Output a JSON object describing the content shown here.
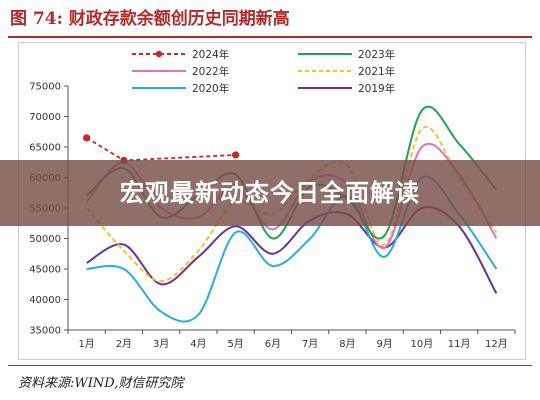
{
  "title": "图 74:  财政存款余额创历史同期新高",
  "source": "资料来源:WIND,财信研究院",
  "overlay_text": "宏观最新动态今日全面解读",
  "chart_data": {
    "type": "line",
    "categories": [
      "1月",
      "2月",
      "3月",
      "4月",
      "5月",
      "6月",
      "7月",
      "8月",
      "9月",
      "10月",
      "11月",
      "12月"
    ],
    "ylim": [
      35000,
      75000
    ],
    "yticks": [
      35000,
      40000,
      45000,
      50000,
      55000,
      60000,
      65000,
      70000,
      75000
    ],
    "grid": false,
    "legend_position": "top",
    "series": [
      {
        "name": "2024年",
        "color": "#c62828",
        "style": "dashed-marker",
        "values": [
          66500,
          62800,
          null,
          null,
          63700,
          null,
          null,
          null,
          null,
          null,
          null,
          null
        ]
      },
      {
        "name": "2023年",
        "color": "#21a456",
        "style": "solid",
        "values": [
          57000,
          61500,
          53500,
          57000,
          60500,
          50000,
          58500,
          56500,
          50500,
          71000,
          65500,
          58000
        ]
      },
      {
        "name": "2022年",
        "color": "#e36fbf",
        "style": "solid",
        "values": [
          56000,
          62500,
          55000,
          53500,
          58500,
          51500,
          59500,
          59000,
          48500,
          65000,
          60500,
          50000
        ]
      },
      {
        "name": "2021年",
        "color": "#f1c232",
        "style": "dashed",
        "values": [
          55000,
          48000,
          43000,
          48000,
          56000,
          54000,
          60000,
          62000,
          49000,
          68000,
          60000,
          51000
        ]
      },
      {
        "name": "2020年",
        "color": "#2aaed8",
        "style": "solid",
        "values": [
          45000,
          45000,
          38000,
          37500,
          51000,
          45500,
          50000,
          57000,
          47000,
          60000,
          54000,
          45000
        ]
      },
      {
        "name": "2019年",
        "color": "#6a3391",
        "style": "solid",
        "values": [
          46000,
          49000,
          42500,
          47000,
          52000,
          47500,
          53000,
          54000,
          48500,
          55000,
          52000,
          41000
        ]
      }
    ]
  }
}
